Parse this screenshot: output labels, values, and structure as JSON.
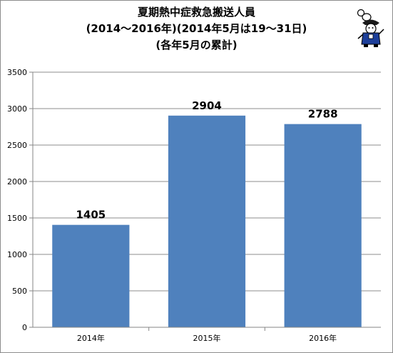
{
  "chart_data": {
    "type": "bar",
    "title_lines": [
      "夏期熱中症救急搬送人員",
      "(2014～2016年)(2014年5月は19～31日)",
      "(各年5月の累計)"
    ],
    "categories": [
      "2014年",
      "2015年",
      "2016年"
    ],
    "values": [
      1405,
      2904,
      2788
    ],
    "data_labels": [
      "1405",
      "2904",
      "2788"
    ],
    "y_ticks": [
      "0",
      "500",
      "1000",
      "1500",
      "2000",
      "2500",
      "3000",
      "3500"
    ],
    "ylim": [
      0,
      3500
    ],
    "grid": true,
    "legend": "none",
    "colors": {
      "bar": "#4f81bd",
      "grid": "#8c8c8c",
      "axis": "#868686",
      "text": "#000000"
    }
  },
  "decoration": {
    "icon": "mascot-icon"
  }
}
